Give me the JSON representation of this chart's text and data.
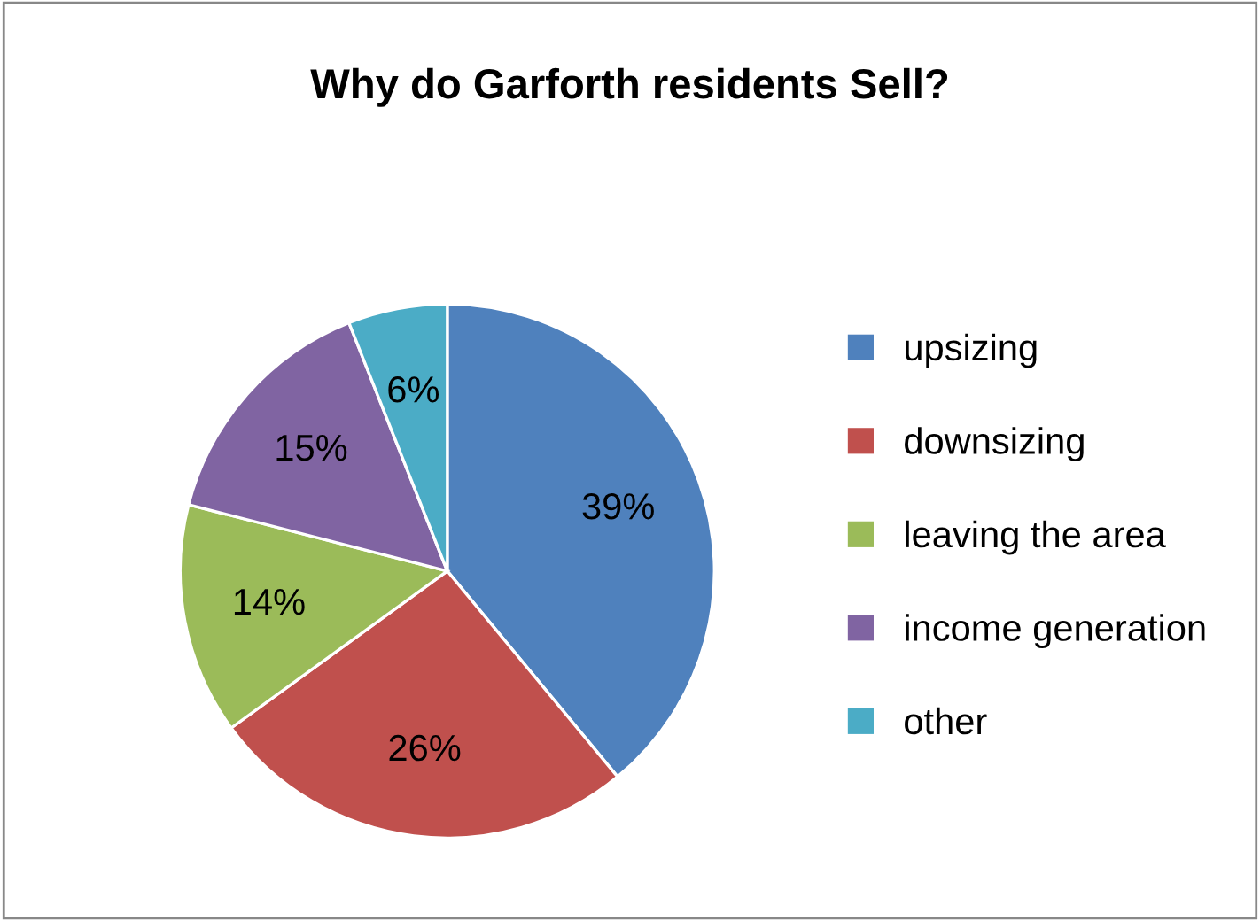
{
  "chart_data": {
    "type": "pie",
    "title": "Why do Garforth residents Sell?",
    "categories": [
      "upsizing",
      "downsizing",
      "leaving the area",
      "income generation",
      "other"
    ],
    "values": [
      39,
      26,
      14,
      15,
      6
    ],
    "colors": [
      "#4f81bd",
      "#c0504d",
      "#9bbb59",
      "#8064a2",
      "#4bacc6"
    ],
    "value_labels": [
      "39%",
      "26%",
      "14%",
      "15%",
      "6%"
    ],
    "legend": "right"
  }
}
